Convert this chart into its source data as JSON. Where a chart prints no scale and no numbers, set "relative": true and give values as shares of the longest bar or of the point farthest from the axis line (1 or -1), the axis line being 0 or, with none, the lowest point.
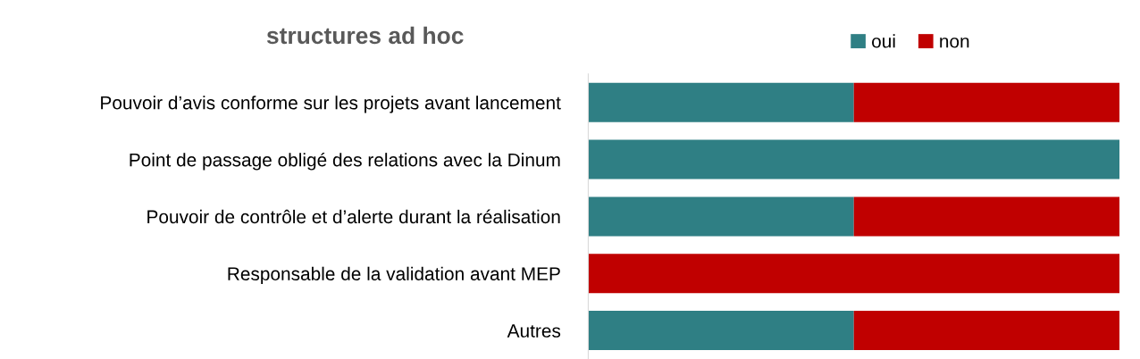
{
  "chart_data": {
    "type": "bar",
    "title": "structures ad hoc",
    "orientation": "horizontal",
    "stacked": true,
    "relative": true,
    "categories": [
      "Pouvoir d’avis conforme sur les projets avant lancement",
      "Point de passage obligé des relations avec la Dinum",
      "Pouvoir de contrôle et d’alerte durant la réalisation",
      "Responsable de la validation avant MEP",
      "Autres"
    ],
    "series": [
      {
        "name": "oui",
        "color": "#2f7f84",
        "values": [
          0.5,
          1,
          0.5,
          0,
          0.5
        ]
      },
      {
        "name": "non",
        "color": "#c00000",
        "values": [
          0.5,
          0,
          0.5,
          1,
          0.5
        ]
      }
    ],
    "legend": "top right",
    "grid": false
  }
}
